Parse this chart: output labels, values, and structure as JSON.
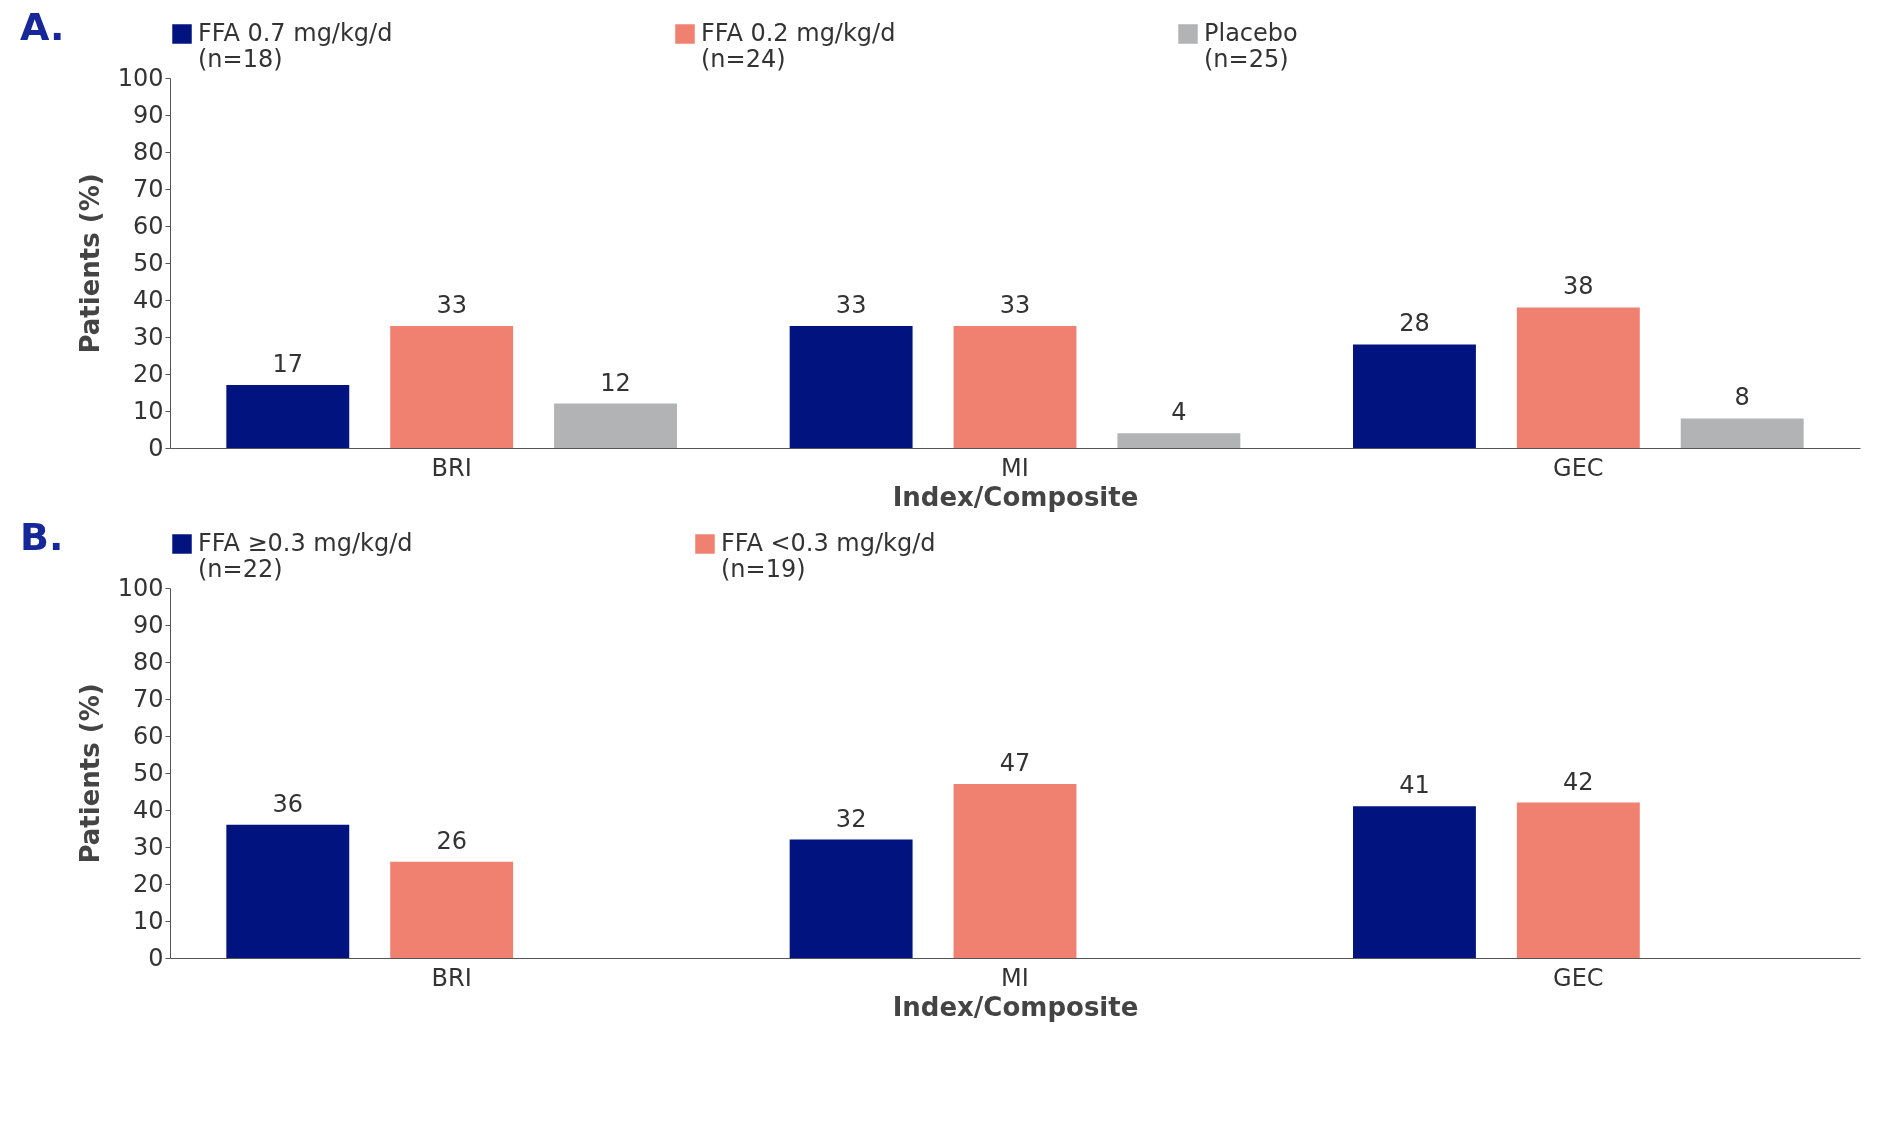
{
  "chart_data": [
    {
      "type": "bar",
      "title": "A.",
      "xlabel": "Index/Composite",
      "ylabel": "Patients (%)",
      "categories": [
        "BRI",
        "MI",
        "GEC"
      ],
      "series": [
        {
          "name": "FFA 0.7 mg/kg/d\n(n=18)",
          "color": "#00137f",
          "values": [
            17,
            33,
            28
          ]
        },
        {
          "name": "FFA 0.2 mg/kg/d\n(n=24)",
          "color": "#f08070",
          "values": [
            33,
            33,
            38
          ]
        },
        {
          "name": "Placebo\n(n=25)",
          "color": "#b1b3b4",
          "values": [
            12,
            4,
            8
          ]
        }
      ],
      "ylim": [
        0,
        100
      ],
      "yticks": [
        0,
        10,
        20,
        30,
        40,
        50,
        60,
        70,
        80,
        90,
        100
      ],
      "data_labels": true,
      "legend": "top",
      "grid": false
    },
    {
      "type": "bar",
      "title": "B.",
      "xlabel": "Index/Composite",
      "ylabel": "Patients (%)",
      "categories": [
        "BRI",
        "MI",
        "GEC"
      ],
      "series": [
        {
          "name": "FFA ≥0.3 mg/kg/d\n(n=22)",
          "color": "#00137f",
          "values": [
            36,
            32,
            41
          ]
        },
        {
          "name": "FFA <0.3 mg/kg/d\n(n=19)",
          "color": "#f08070",
          "values": [
            26,
            47,
            42
          ]
        }
      ],
      "ylim": [
        0,
        100
      ],
      "yticks": [
        0,
        10,
        20,
        30,
        40,
        50,
        60,
        70,
        80,
        90,
        100
      ],
      "data_labels": true,
      "legend": "top",
      "grid": false
    }
  ]
}
